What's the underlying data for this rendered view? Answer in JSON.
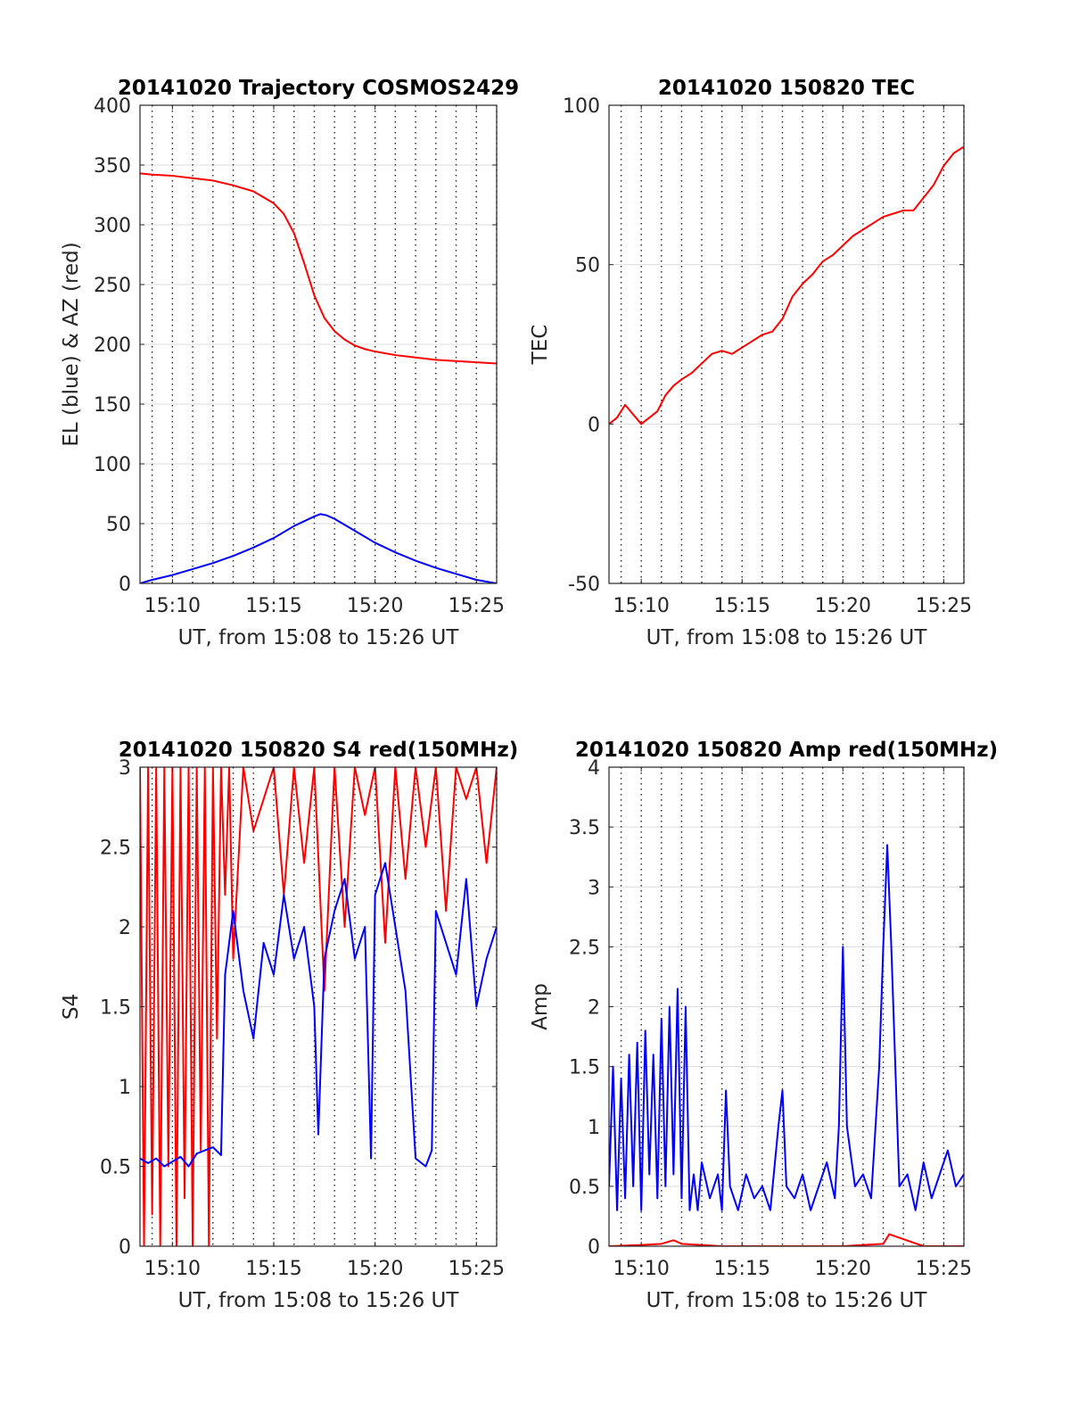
{
  "chart_data": [
    {
      "type": "line",
      "title": "20141020 Trajectory COSMOS2429",
      "xlabel": "UT, from 15:08 to 15:26 UT",
      "ylabel": "EL (blue) & AZ (red)",
      "xlim": [
        8.4,
        26.0
      ],
      "ylim": [
        0,
        400
      ],
      "xticks": [
        10,
        15,
        20,
        25
      ],
      "xtick_labels": [
        "15:10",
        "15:15",
        "15:20",
        "15:25"
      ],
      "yticks": [
        0,
        50,
        100,
        150,
        200,
        250,
        300,
        350,
        400
      ],
      "ytick_labels": [
        "0",
        "50",
        "100",
        "150",
        "200",
        "250",
        "300",
        "350",
        "400"
      ],
      "grid": "dotted vertical lines every minute, light horizontal gridlines",
      "series": [
        {
          "color": "#ff0000",
          "x": [
            8.4,
            9,
            10,
            11,
            12,
            13,
            14,
            15,
            15.5,
            16,
            16.5,
            17,
            17.5,
            18,
            18.5,
            19,
            19.5,
            20,
            21,
            22,
            23,
            24,
            25,
            26
          ],
          "values": [
            343,
            342,
            341,
            339,
            337,
            333,
            328,
            318,
            309,
            293,
            268,
            241,
            222,
            211,
            204,
            199,
            196,
            194,
            191,
            189,
            187,
            186,
            185,
            184
          ]
        },
        {
          "color": "#0000ff",
          "x": [
            8.4,
            9,
            10,
            11,
            12,
            13,
            14,
            15,
            16,
            17,
            17.3,
            17.6,
            18,
            19,
            20,
            21,
            22,
            23,
            24,
            25,
            26
          ],
          "values": [
            0,
            3,
            7,
            12,
            17,
            23,
            30,
            38,
            48,
            56,
            58,
            57,
            54,
            44,
            34,
            26,
            19,
            13,
            8,
            3,
            0
          ]
        }
      ]
    },
    {
      "type": "line",
      "title": "20141020 150820 TEC",
      "xlabel": "UT, from 15:08 to 15:26 UT",
      "ylabel": "TEC",
      "xlim": [
        8.4,
        26.0
      ],
      "ylim": [
        -50,
        100
      ],
      "xticks": [
        10,
        15,
        20,
        25
      ],
      "xtick_labels": [
        "15:10",
        "15:15",
        "15:20",
        "15:25"
      ],
      "yticks": [
        -50,
        0,
        50,
        100
      ],
      "ytick_labels": [
        "-50",
        "0",
        "50",
        "100"
      ],
      "grid": "dotted vertical lines every minute, light horizontal gridlines",
      "series": [
        {
          "color": "#ff0000",
          "x": [
            8.4,
            8.8,
            9.2,
            9.6,
            10.0,
            10.4,
            10.8,
            11.2,
            11.6,
            12.0,
            12.5,
            13.0,
            13.5,
            14.0,
            14.5,
            15.0,
            15.5,
            16.0,
            16.5,
            17.0,
            17.5,
            18.0,
            18.5,
            19.0,
            19.5,
            20.0,
            20.5,
            21.0,
            21.5,
            22.0,
            22.5,
            23.0,
            23.5,
            24.0,
            24.5,
            25.0,
            25.5,
            26.0
          ],
          "values": [
            0,
            2,
            6,
            3,
            0,
            2,
            4,
            9,
            12,
            14,
            16,
            19,
            22,
            23,
            22,
            24,
            26,
            28,
            29,
            33,
            40,
            44,
            47,
            51,
            53,
            56,
            59,
            61,
            63,
            65,
            66,
            67,
            67,
            71,
            75,
            81,
            85,
            87
          ]
        }
      ]
    },
    {
      "type": "line",
      "title": "20141020 150820 S4 red(150MHz)",
      "xlabel": "UT, from 15:08 to 15:26 UT",
      "ylabel": "S4",
      "xlim": [
        8.4,
        26.0
      ],
      "ylim": [
        0,
        3
      ],
      "xticks": [
        10,
        15,
        20,
        25
      ],
      "xtick_labels": [
        "15:10",
        "15:15",
        "15:20",
        "15:25"
      ],
      "yticks": [
        0,
        0.5,
        1,
        1.5,
        2,
        2.5,
        3
      ],
      "ytick_labels": [
        "0",
        "0.5",
        "1",
        "1.5",
        "2",
        "2.5",
        "3"
      ],
      "grid": "dotted vertical lines every minute, light horizontal gridlines",
      "series": [
        {
          "color": "#ff0000",
          "x": [
            8.4,
            8.6,
            8.8,
            9.0,
            9.2,
            9.4,
            9.6,
            9.8,
            10.0,
            10.2,
            10.4,
            10.6,
            10.8,
            11.0,
            11.2,
            11.4,
            11.6,
            11.8,
            12.0,
            12.2,
            12.4,
            12.6,
            12.8,
            13.0,
            13.5,
            14.0,
            14.5,
            15.0,
            15.5,
            16.0,
            16.5,
            17.0,
            17.5,
            18.0,
            18.5,
            19.0,
            19.5,
            20.0,
            20.5,
            21.0,
            21.5,
            22.0,
            22.5,
            23.0,
            23.5,
            24.0,
            24.5,
            25.0,
            25.5,
            26.0
          ],
          "values": [
            3,
            0,
            3,
            0.2,
            3,
            0,
            3,
            0.5,
            3,
            0,
            3,
            0.3,
            3,
            0,
            3,
            0.6,
            3,
            0,
            3,
            1.3,
            3,
            2.2,
            3,
            1.8,
            3,
            2.6,
            2.8,
            3,
            2.2,
            3,
            2.4,
            3,
            1.6,
            3,
            2.0,
            3,
            2.7,
            3,
            1.9,
            3,
            2.3,
            3,
            2.5,
            3,
            2.1,
            3,
            2.8,
            3,
            2.4,
            3
          ]
        },
        {
          "color": "#0000ff",
          "x": [
            8.4,
            8.8,
            9.2,
            9.6,
            10.0,
            10.4,
            10.8,
            11.2,
            11.6,
            12.0,
            12.4,
            12.6,
            13.0,
            13.5,
            14.0,
            14.5,
            15.0,
            15.5,
            16.0,
            16.5,
            17.0,
            17.2,
            17.5,
            18.0,
            18.5,
            19.0,
            19.5,
            19.8,
            20.0,
            20.5,
            21.0,
            21.5,
            22.0,
            22.5,
            22.8,
            23.0,
            23.5,
            24.0,
            24.5,
            25.0,
            25.5,
            26.0
          ],
          "values": [
            0.55,
            0.52,
            0.55,
            0.5,
            0.53,
            0.56,
            0.5,
            0.58,
            0.6,
            0.62,
            0.57,
            1.7,
            2.1,
            1.6,
            1.3,
            1.9,
            1.7,
            2.2,
            1.8,
            2.0,
            1.5,
            0.7,
            1.8,
            2.1,
            2.3,
            1.8,
            2.0,
            0.55,
            2.2,
            2.4,
            2.0,
            1.6,
            0.55,
            0.5,
            0.6,
            2.1,
            1.9,
            1.7,
            2.3,
            1.5,
            1.8,
            2.0
          ]
        }
      ]
    },
    {
      "type": "line",
      "title": "20141020 150820 Amp red(150MHz)",
      "xlabel": "UT, from 15:08 to 15:26 UT",
      "ylabel": "Amp",
      "xlim": [
        8.4,
        26.0
      ],
      "ylim": [
        0,
        4
      ],
      "xticks": [
        10,
        15,
        20,
        25
      ],
      "xtick_labels": [
        "15:10",
        "15:15",
        "15:20",
        "15:25"
      ],
      "yticks": [
        0,
        0.5,
        1,
        1.5,
        2,
        2.5,
        3,
        3.5,
        4
      ],
      "ytick_labels": [
        "0",
        "0.5",
        "1",
        "1.5",
        "2",
        "2.5",
        "3",
        "3.5",
        "4"
      ],
      "grid": "dotted vertical lines every minute, light horizontal gridlines",
      "series": [
        {
          "color": "#ff0000",
          "x": [
            8.4,
            10.0,
            11.0,
            11.6,
            12.0,
            14.0,
            16.0,
            18.0,
            20.0,
            21.0,
            22.0,
            22.3,
            24.0,
            26.0
          ],
          "values": [
            0.0,
            0.01,
            0.02,
            0.05,
            0.02,
            0.0,
            0.0,
            0.0,
            0.0,
            0.01,
            0.02,
            0.1,
            0.0,
            0.0
          ]
        },
        {
          "color": "#0000ff",
          "x": [
            8.4,
            8.6,
            8.8,
            9.0,
            9.2,
            9.4,
            9.6,
            9.8,
            10.0,
            10.2,
            10.4,
            10.6,
            10.8,
            11.0,
            11.2,
            11.4,
            11.6,
            11.8,
            12.0,
            12.2,
            12.4,
            12.6,
            12.8,
            13.0,
            13.4,
            13.8,
            14.0,
            14.2,
            14.4,
            14.8,
            15.2,
            15.6,
            16.0,
            16.4,
            16.8,
            17.0,
            17.2,
            17.6,
            18.0,
            18.4,
            18.8,
            19.2,
            19.6,
            19.8,
            20.0,
            20.2,
            20.6,
            21.0,
            21.4,
            21.8,
            22.0,
            22.2,
            22.4,
            22.8,
            23.2,
            23.6,
            24.0,
            24.4,
            24.8,
            25.2,
            25.6,
            26.0
          ],
          "values": [
            0.5,
            1.5,
            0.3,
            1.4,
            0.4,
            1.6,
            0.5,
            1.7,
            0.3,
            1.8,
            0.6,
            1.6,
            0.4,
            1.9,
            0.5,
            2.0,
            0.6,
            2.15,
            0.4,
            2.0,
            0.3,
            0.6,
            0.3,
            0.7,
            0.4,
            0.6,
            0.3,
            1.3,
            0.5,
            0.3,
            0.6,
            0.4,
            0.5,
            0.3,
            1.0,
            1.3,
            0.5,
            0.4,
            0.6,
            0.3,
            0.5,
            0.7,
            0.4,
            1.0,
            2.5,
            1.0,
            0.5,
            0.6,
            0.4,
            1.5,
            2.5,
            3.35,
            2.5,
            0.5,
            0.6,
            0.3,
            0.7,
            0.4,
            0.6,
            0.8,
            0.5,
            0.6
          ]
        }
      ]
    }
  ]
}
